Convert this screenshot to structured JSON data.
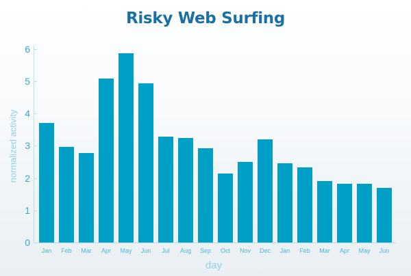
{
  "chart_data": {
    "type": "bar",
    "title": "Risky Web Surfing",
    "xlabel": "day",
    "ylabel": "normalized activity",
    "categories": [
      "Jan",
      "Feb",
      "Mar",
      "Apr",
      "May",
      "Jun",
      "Jul",
      "Aug",
      "Sep",
      "Oct",
      "Nov",
      "Dec",
      "Jan",
      "Feb",
      "Mar",
      "Apr",
      "May",
      "Jun"
    ],
    "values": [
      3.7,
      2.97,
      2.77,
      5.08,
      5.87,
      4.93,
      3.28,
      3.24,
      2.93,
      2.14,
      2.51,
      3.2,
      2.46,
      2.32,
      1.9,
      1.82,
      1.82,
      1.69
    ],
    "ylim": [
      0,
      6
    ],
    "yticks": [
      "0",
      "1",
      "2",
      "3",
      "4",
      "5",
      "6"
    ],
    "grid": false,
    "legend": null,
    "colors": {
      "bar": "#00a0c6",
      "title": "#1a6fa5",
      "axis_label": "#8fd3de",
      "tick_label": "#3aa7c8"
    }
  }
}
